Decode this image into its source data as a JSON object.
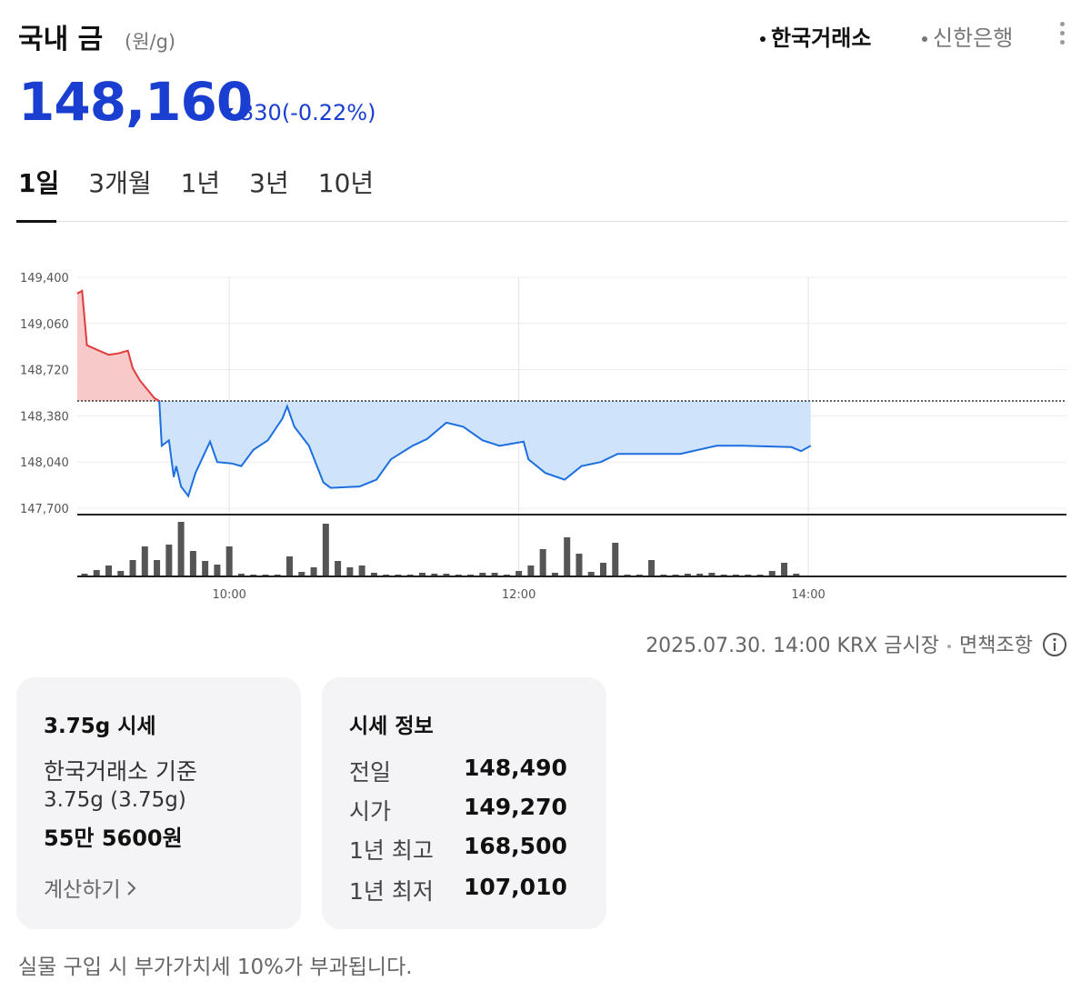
{
  "header": {
    "title": "국내 금",
    "unit": "(원/g)",
    "sources": [
      "한국거래소",
      "신한은행"
    ]
  },
  "price": {
    "value": "148,160",
    "change": "330",
    "change_percent": "(-0.22%)"
  },
  "periods": [
    "1일",
    "3개월",
    "1년",
    "3년",
    "10년"
  ],
  "chart_data": [
    {
      "type": "line",
      "x": [
        537,
        539,
        541,
        546,
        550,
        554,
        558,
        560,
        563,
        569,
        571,
        572,
        575,
        577,
        578,
        580,
        583,
        586,
        592,
        595,
        601,
        605,
        610,
        616,
        622,
        624,
        627,
        633,
        639,
        642,
        654,
        661,
        667,
        676,
        682,
        690,
        697,
        705,
        712,
        722,
        724,
        731,
        739,
        746,
        754,
        761,
        787,
        802,
        813,
        833,
        837,
        841
      ],
      "values": [
        149280,
        149300,
        148900,
        148860,
        148830,
        148840,
        148860,
        148730,
        148640,
        148510,
        148490,
        148160,
        148200,
        147930,
        148010,
        147860,
        147790,
        147960,
        148190,
        148040,
        148030,
        148010,
        148130,
        148200,
        148360,
        148450,
        148300,
        148160,
        147890,
        147850,
        147860,
        147910,
        148060,
        148160,
        148210,
        148330,
        148300,
        148200,
        148160,
        148190,
        148060,
        147960,
        147910,
        148010,
        148040,
        148100,
        148100,
        148160,
        148160,
        148150,
        148120,
        148160
      ],
      "baseline": 148490,
      "color_up": "#e23b3b",
      "color_down": "#1d6fe0",
      "fill_up": "#f7c9c9",
      "fill_down": "#cfe4fa",
      "xlim": [
        537,
        947
      ],
      "xticks": [
        {
          "value": 600,
          "label": "10:00"
        },
        {
          "value": 720,
          "label": "12:00"
        },
        {
          "value": 840,
          "label": "14:00"
        }
      ],
      "ylim": [
        147700,
        149400
      ],
      "yticks": [
        {
          "value": 147700,
          "label": "147,700"
        },
        {
          "value": 148040,
          "label": "148,040"
        },
        {
          "value": 148380,
          "label": "148,380"
        },
        {
          "value": 148720,
          "label": "148,720"
        },
        {
          "value": 149060,
          "label": "149,060"
        },
        {
          "value": 149400,
          "label": "149,400"
        }
      ],
      "grid": true
    },
    {
      "type": "bar",
      "x": [
        540,
        545,
        550,
        555,
        560,
        565,
        570,
        575,
        580,
        585,
        590,
        595,
        600,
        605,
        610,
        615,
        620,
        625,
        630,
        635,
        640,
        645,
        650,
        655,
        660,
        665,
        670,
        675,
        680,
        685,
        690,
        695,
        700,
        705,
        710,
        715,
        720,
        725,
        730,
        735,
        740,
        745,
        750,
        755,
        760,
        765,
        770,
        775,
        780,
        785,
        790,
        795,
        800,
        805,
        810,
        815,
        820,
        825,
        830,
        835
      ],
      "values": [
        3,
        7,
        12,
        6,
        18,
        33,
        18,
        35,
        60,
        28,
        17,
        13,
        33,
        3,
        2,
        2,
        2,
        22,
        5,
        10,
        58,
        17,
        10,
        12,
        4,
        2,
        2,
        2,
        4,
        3,
        3,
        2,
        2,
        4,
        4,
        2,
        6,
        12,
        30,
        4,
        43,
        25,
        5,
        15,
        37,
        2,
        2,
        18,
        2,
        2,
        3,
        3,
        4,
        2,
        2,
        2,
        2,
        6,
        15,
        3
      ],
      "color": "#555555",
      "xlim": [
        537,
        947
      ],
      "ylim": [
        0,
        60
      ]
    }
  ],
  "footer": {
    "timestamp": "2025.07.30. 14:00 KRX 금시장",
    "disclaimer": "면책조항"
  },
  "cards": [
    {
      "title": "3.75g 시세",
      "lines": [
        "한국거래소 기준",
        "3.75g (3.75g)",
        "55만 5600원"
      ],
      "link": "계산하기"
    },
    {
      "title": "시세 정보",
      "rows": [
        [
          "전일",
          "148,490"
        ],
        [
          "시가",
          "149,270"
        ],
        [
          "1년 최고",
          "168,500"
        ],
        [
          "1년 최저",
          "107,010"
        ]
      ]
    }
  ],
  "note": "실물 구입 시 부가가치세 10%가 부과됩니다."
}
